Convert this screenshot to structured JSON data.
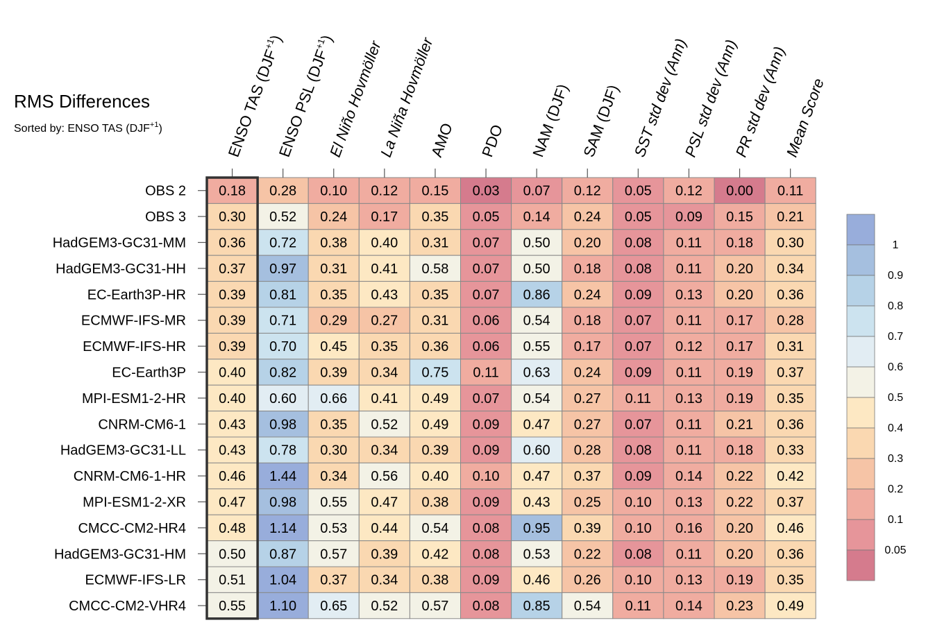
{
  "chart_data": {
    "type": "heatmap",
    "title": "RMS Differences",
    "subtitle_prefix": "Sorted by: ",
    "subtitle_base": "ENSO TAS (DJF",
    "subtitle_sup": "+1",
    "subtitle_suffix": ")",
    "columns": [
      {
        "label": "ENSO TAS (DJF",
        "sup": "+1",
        "suffix": ")",
        "italic": false
      },
      {
        "label": "ENSO PSL (DJF",
        "sup": "+1",
        "suffix": ")",
        "italic": false
      },
      {
        "label": "El Niño Hovmöller",
        "italic": true
      },
      {
        "label": "La Niña Hovmöller",
        "italic": true
      },
      {
        "label": "AMO",
        "italic": false
      },
      {
        "label": "PDO",
        "italic": false
      },
      {
        "label": "NAM (DJF)",
        "italic": false
      },
      {
        "label": "SAM (DJF)",
        "italic": false
      },
      {
        "label": "SST std dev (Ann)",
        "italic": true
      },
      {
        "label": "PSL std dev (Ann)",
        "italic": true
      },
      {
        "label": "PR std dev (Ann)",
        "italic": true
      },
      {
        "label": "Mean Score",
        "italic": true
      }
    ],
    "rows": [
      "OBS 2",
      "OBS 3",
      "HadGEM3-GC31-MM",
      "HadGEM3-GC31-HH",
      "EC-Earth3P-HR",
      "ECMWF-IFS-MR",
      "ECMWF-IFS-HR",
      "EC-Earth3P",
      "MPI-ESM1-2-HR",
      "CNRM-CM6-1",
      "HadGEM3-GC31-LL",
      "CNRM-CM6-1-HR",
      "MPI-ESM1-2-XR",
      "CMCC-CM2-HR4",
      "HadGEM3-GC31-HM",
      "ECMWF-IFS-LR",
      "CMCC-CM2-VHR4"
    ],
    "values": [
      [
        "0.18",
        "0.28",
        "0.10",
        "0.12",
        "0.15",
        "0.03",
        "0.07",
        "0.12",
        "0.05",
        "0.12",
        "0.00",
        "0.11"
      ],
      [
        "0.30",
        "0.52",
        "0.24",
        "0.17",
        "0.35",
        "0.05",
        "0.14",
        "0.24",
        "0.05",
        "0.09",
        "0.15",
        "0.21"
      ],
      [
        "0.36",
        "0.72",
        "0.38",
        "0.40",
        "0.31",
        "0.07",
        "0.50",
        "0.20",
        "0.08",
        "0.11",
        "0.18",
        "0.30"
      ],
      [
        "0.37",
        "0.97",
        "0.31",
        "0.41",
        "0.58",
        "0.07",
        "0.50",
        "0.18",
        "0.08",
        "0.11",
        "0.20",
        "0.34"
      ],
      [
        "0.39",
        "0.81",
        "0.35",
        "0.43",
        "0.35",
        "0.07",
        "0.86",
        "0.24",
        "0.09",
        "0.13",
        "0.20",
        "0.36"
      ],
      [
        "0.39",
        "0.71",
        "0.29",
        "0.27",
        "0.31",
        "0.06",
        "0.54",
        "0.18",
        "0.07",
        "0.11",
        "0.17",
        "0.28"
      ],
      [
        "0.39",
        "0.70",
        "0.45",
        "0.35",
        "0.36",
        "0.06",
        "0.55",
        "0.17",
        "0.07",
        "0.12",
        "0.17",
        "0.31"
      ],
      [
        "0.40",
        "0.82",
        "0.39",
        "0.34",
        "0.75",
        "0.11",
        "0.63",
        "0.24",
        "0.09",
        "0.11",
        "0.19",
        "0.37"
      ],
      [
        "0.40",
        "0.60",
        "0.66",
        "0.41",
        "0.49",
        "0.07",
        "0.54",
        "0.27",
        "0.11",
        "0.13",
        "0.19",
        "0.35"
      ],
      [
        "0.43",
        "0.98",
        "0.35",
        "0.52",
        "0.49",
        "0.09",
        "0.47",
        "0.27",
        "0.07",
        "0.11",
        "0.21",
        "0.36"
      ],
      [
        "0.43",
        "0.78",
        "0.30",
        "0.34",
        "0.39",
        "0.09",
        "0.60",
        "0.28",
        "0.08",
        "0.11",
        "0.18",
        "0.33"
      ],
      [
        "0.46",
        "1.44",
        "0.34",
        "0.56",
        "0.40",
        "0.10",
        "0.47",
        "0.37",
        "0.09",
        "0.14",
        "0.22",
        "0.42"
      ],
      [
        "0.47",
        "0.98",
        "0.55",
        "0.47",
        "0.38",
        "0.09",
        "0.43",
        "0.25",
        "0.10",
        "0.13",
        "0.22",
        "0.37"
      ],
      [
        "0.48",
        "1.14",
        "0.53",
        "0.44",
        "0.54",
        "0.08",
        "0.95",
        "0.39",
        "0.10",
        "0.16",
        "0.20",
        "0.46"
      ],
      [
        "0.50",
        "0.87",
        "0.57",
        "0.39",
        "0.42",
        "0.08",
        "0.53",
        "0.22",
        "0.08",
        "0.11",
        "0.20",
        "0.36"
      ],
      [
        "0.51",
        "1.04",
        "0.37",
        "0.34",
        "0.38",
        "0.09",
        "0.46",
        "0.26",
        "0.10",
        "0.13",
        "0.19",
        "0.35"
      ],
      [
        "0.55",
        "1.10",
        "0.65",
        "0.52",
        "0.57",
        "0.08",
        "0.85",
        "0.54",
        "0.11",
        "0.14",
        "0.23",
        "0.49"
      ]
    ],
    "sorted_column_index": 0,
    "colorbar": {
      "boundaries": [
        0.05,
        0.1,
        0.2,
        0.3,
        0.4,
        0.5,
        0.6,
        0.7,
        0.8,
        0.9,
        1
      ],
      "labels": [
        "1",
        "0.9",
        "0.8",
        "0.7",
        "0.6",
        "0.5",
        "0.4",
        "0.3",
        "0.2",
        "0.1",
        "0.05"
      ],
      "colors_low_to_high": [
        "#d57b8d",
        "#e6959a",
        "#f0aca0",
        "#f6c4a6",
        "#fad8b1",
        "#fde8c3",
        "#f3f2e6",
        "#e2edf3",
        "#cce3ef",
        "#b6d2e7",
        "#a5bfdf",
        "#98addb"
      ]
    }
  }
}
